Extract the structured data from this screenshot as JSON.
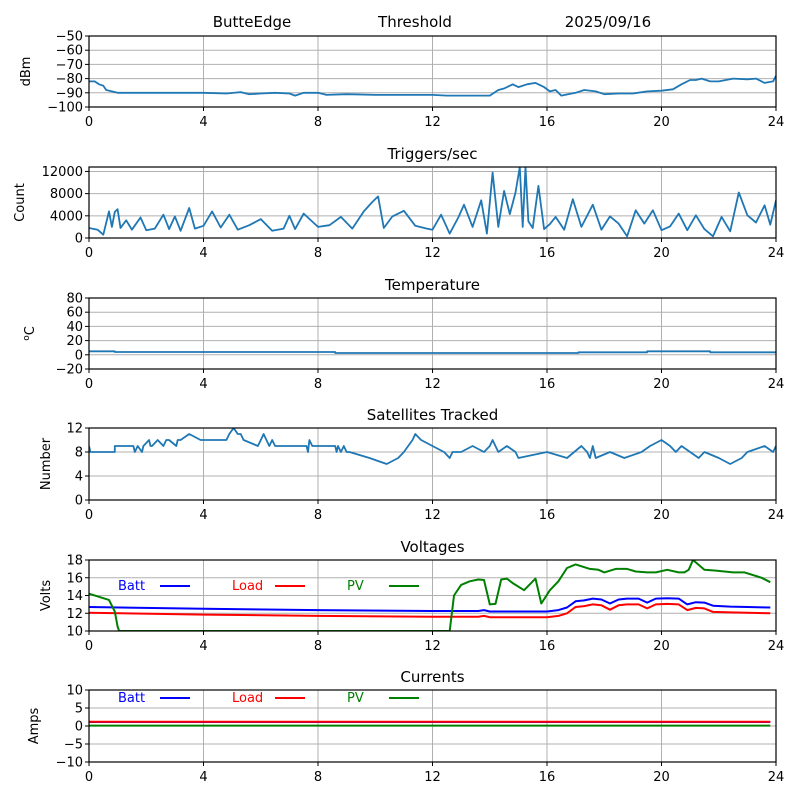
{
  "header": {
    "station": "ButteEdge",
    "first_plot": "Threshold",
    "date": "2025/09/16"
  },
  "chart_data": [
    {
      "id": "threshold",
      "type": "line",
      "title": "Threshold",
      "xlabel": "",
      "ylabel": "dBm",
      "xlim": [
        0,
        24
      ],
      "ylim": [
        -100,
        -50
      ],
      "xticks": [
        0,
        4,
        8,
        12,
        16,
        20,
        24
      ],
      "yticks": [
        -100,
        -90,
        -80,
        -70,
        -60,
        -50
      ],
      "ytick_labels": [
        "−100",
        "−90",
        "−80",
        "−70",
        "−60",
        "−50"
      ],
      "grid": true,
      "series": [
        {
          "name": "threshold",
          "color": "#1f77b4",
          "x": [
            0,
            0.2,
            0.35,
            0.5,
            0.6,
            1,
            2,
            3,
            4,
            4.8,
            5.3,
            5.6,
            6,
            6.5,
            7,
            7.2,
            7.5,
            8,
            8.3,
            9,
            10,
            11,
            12,
            12.5,
            13,
            14,
            14.3,
            14.5,
            14.8,
            15,
            15.3,
            15.6,
            15.9,
            16.1,
            16.3,
            16.5,
            17,
            17.3,
            17.7,
            18,
            18.5,
            19,
            19.5,
            20,
            20.4,
            20.7,
            21,
            21.2,
            21.4,
            21.7,
            22,
            22.5,
            23,
            23.3,
            23.6,
            23.9,
            24
          ],
          "y": [
            -82,
            -82,
            -84,
            -85,
            -88,
            -90,
            -90,
            -90,
            -90,
            -90.5,
            -89.5,
            -91,
            -90.5,
            -90,
            -90.5,
            -92,
            -90,
            -90,
            -91.5,
            -91,
            -91.5,
            -91.5,
            -91.5,
            -92,
            -92,
            -92,
            -88,
            -87,
            -84,
            -86,
            -84,
            -83,
            -86,
            -89,
            -88,
            -92,
            -90,
            -88,
            -89,
            -91,
            -90.5,
            -90.5,
            -89,
            -88.5,
            -87.5,
            -84,
            -81,
            -81,
            -80,
            -82,
            -82,
            -80,
            -80.5,
            -80,
            -83,
            -82,
            -78
          ]
        }
      ]
    },
    {
      "id": "triggers",
      "type": "line",
      "title": "Triggers/sec",
      "xlabel": "",
      "ylabel": "Count",
      "xlim": [
        0,
        24
      ],
      "ylim": [
        0,
        12800
      ],
      "xticks": [
        0,
        4,
        8,
        12,
        16,
        20,
        24
      ],
      "yticks": [
        0,
        4000,
        8000,
        12000
      ],
      "ytick_labels": [
        "0",
        "4000",
        "8000",
        "12000"
      ],
      "grid": true,
      "series": [
        {
          "name": "triggers",
          "color": "#1f77b4",
          "x": [
            0,
            0.3,
            0.5,
            0.7,
            0.8,
            0.9,
            1.0,
            1.1,
            1.3,
            1.5,
            1.8,
            2.0,
            2.3,
            2.6,
            2.8,
            3.0,
            3.2,
            3.5,
            3.7,
            4.0,
            4.3,
            4.6,
            4.9,
            5.2,
            5.6,
            6.0,
            6.4,
            6.8,
            7.0,
            7.2,
            7.5,
            8.0,
            8.4,
            8.8,
            9.2,
            9.6,
            9.9,
            10.1,
            10.3,
            10.6,
            11.0,
            11.4,
            11.8,
            12.0,
            12.3,
            12.6,
            12.9,
            13.1,
            13.4,
            13.7,
            13.9,
            14.1,
            14.3,
            14.5,
            14.7,
            14.9,
            15.05,
            15.15,
            15.25,
            15.35,
            15.5,
            15.7,
            15.9,
            16.1,
            16.3,
            16.6,
            16.9,
            17.2,
            17.6,
            17.9,
            18.2,
            18.5,
            18.8,
            19.1,
            19.4,
            19.7,
            20.0,
            20.3,
            20.6,
            20.9,
            21.2,
            21.5,
            21.8,
            22.1,
            22.4,
            22.7,
            23.0,
            23.3,
            23.6,
            23.8,
            24.0
          ],
          "y": [
            1800,
            1500,
            600,
            4800,
            2000,
            4700,
            5200,
            1800,
            3200,
            1500,
            3700,
            1400,
            1700,
            4200,
            1600,
            3900,
            1300,
            5400,
            1700,
            2200,
            4800,
            1900,
            4200,
            1500,
            2300,
            3400,
            1300,
            1700,
            4000,
            1600,
            4400,
            2000,
            2300,
            3800,
            1700,
            4800,
            6500,
            7500,
            1800,
            3900,
            4900,
            2200,
            1700,
            1500,
            4200,
            800,
            3700,
            6000,
            2000,
            6800,
            800,
            11800,
            2000,
            8500,
            4300,
            8200,
            12800,
            2000,
            12800,
            3000,
            1800,
            9400,
            1600,
            2500,
            3800,
            1500,
            7000,
            2000,
            6000,
            1500,
            3900,
            2600,
            300,
            5000,
            2600,
            5000,
            1400,
            2100,
            4400,
            1400,
            4100,
            1600,
            300,
            3800,
            1200,
            8200,
            4100,
            2800,
            5900,
            2400,
            6800
          ]
        }
      ]
    },
    {
      "id": "temperature",
      "type": "line",
      "title": "Temperature",
      "xlabel": "",
      "ylabel": "°C",
      "ylabel_display": "oC",
      "xlim": [
        0,
        24
      ],
      "ylim": [
        -20,
        80
      ],
      "xticks": [
        0,
        4,
        8,
        12,
        16,
        20,
        24
      ],
      "yticks": [
        -20,
        0,
        20,
        40,
        60,
        80
      ],
      "ytick_labels": [
        "−20",
        "0",
        "20",
        "40",
        "60",
        "80"
      ],
      "grid": true,
      "series": [
        {
          "name": "temperature",
          "color": "#1f77b4",
          "x": [
            0,
            0.9,
            0.9,
            8.6,
            8.6,
            17.1,
            17.1,
            19.5,
            19.5,
            21.7,
            21.7,
            24
          ],
          "y": [
            5,
            5,
            4,
            4,
            2.5,
            2.5,
            3.5,
            3.5,
            5,
            5,
            3.5,
            3.5
          ]
        }
      ]
    },
    {
      "id": "satellites",
      "type": "line",
      "title": "Satellites Tracked",
      "xlabel": "",
      "ylabel": "Number",
      "xlim": [
        0,
        24
      ],
      "ylim": [
        0,
        12
      ],
      "xticks": [
        0,
        4,
        8,
        12,
        16,
        20,
        24
      ],
      "yticks": [
        0,
        4,
        8,
        12
      ],
      "ytick_labels": [
        "0",
        "4",
        "8",
        "12"
      ],
      "grid": true,
      "series": [
        {
          "name": "satellites",
          "color": "#1f77b4",
          "x": [
            0,
            0.05,
            0.1,
            0.9,
            0.9,
            1.55,
            1.6,
            1.7,
            1.85,
            1.9,
            2.1,
            2.15,
            2.2,
            2.4,
            2.6,
            2.7,
            2.8,
            3.05,
            3.1,
            3.2,
            3.5,
            3.9,
            4.8,
            4.9,
            5.05,
            5.2,
            5.3,
            5.4,
            5.9,
            6.0,
            6.1,
            6.3,
            6.4,
            6.5,
            7.6,
            7.65,
            7.7,
            7.8,
            8.6,
            8.65,
            8.7,
            8.8,
            8.9,
            9.0,
            9.1,
            9.8,
            10.4,
            10.8,
            11.0,
            11.3,
            11.4,
            11.6,
            12.0,
            12.4,
            12.6,
            12.7,
            13.0,
            13.4,
            13.8,
            14.0,
            14.1,
            14.3,
            14.6,
            14.9,
            15.0,
            16.0,
            16.7,
            17.2,
            17.4,
            17.5,
            17.6,
            17.7,
            18.2,
            18.7,
            19.3,
            19.6,
            20.0,
            20.3,
            20.5,
            20.7,
            21.0,
            21.3,
            21.5,
            22.0,
            22.4,
            22.8,
            23.0,
            23.6,
            23.9,
            24.0
          ],
          "y": [
            9,
            8,
            8,
            8,
            9,
            9,
            8,
            9,
            8,
            9,
            10,
            9,
            9,
            10,
            9,
            10,
            10,
            9,
            10,
            10,
            11,
            10,
            10,
            11,
            12,
            11,
            11,
            10,
            9,
            10,
            11,
            9,
            10,
            9,
            9,
            8,
            10,
            9,
            9,
            8,
            9,
            8,
            9,
            8,
            8,
            7,
            6,
            7,
            8,
            10,
            11,
            10,
            9,
            8,
            7,
            8,
            8,
            9,
            8,
            9,
            10,
            8,
            9,
            8,
            7,
            8,
            7,
            9,
            8,
            7,
            9,
            7,
            8,
            7,
            8,
            9,
            10,
            9,
            8,
            9,
            8,
            7,
            8,
            7,
            6,
            7,
            8,
            9,
            8,
            9
          ]
        }
      ]
    },
    {
      "id": "voltages",
      "type": "line",
      "title": "Voltages",
      "xlabel": "",
      "ylabel": "Volts",
      "xlim": [
        0,
        24
      ],
      "ylim": [
        10,
        18
      ],
      "xticks": [
        0,
        4,
        8,
        12,
        16,
        20,
        24
      ],
      "yticks": [
        10,
        12,
        14,
        16,
        18
      ],
      "ytick_labels": [
        "10",
        "12",
        "14",
        "16",
        "18"
      ],
      "grid": true,
      "legend": {
        "placement": "top-left",
        "entries": [
          "Batt",
          "Load",
          "PV"
        ]
      },
      "series": [
        {
          "name": "Batt",
          "color": "#0000ff",
          "x": [
            0,
            4,
            8,
            12,
            13.0,
            13.6,
            13.8,
            14.0,
            16.0,
            16.4,
            16.7,
            17.0,
            17.3,
            17.6,
            17.9,
            18.2,
            18.5,
            18.8,
            19.2,
            19.5,
            19.8,
            20.2,
            20.6,
            20.9,
            21.2,
            21.5,
            21.8,
            22.4,
            23.0,
            23.8
          ],
          "y": [
            12.7,
            12.5,
            12.35,
            12.25,
            12.25,
            12.25,
            12.35,
            12.2,
            12.2,
            12.35,
            12.65,
            13.35,
            13.45,
            13.65,
            13.55,
            13.1,
            13.55,
            13.65,
            13.65,
            13.2,
            13.65,
            13.7,
            13.65,
            13.0,
            13.25,
            13.2,
            12.85,
            12.75,
            12.7,
            12.65
          ]
        },
        {
          "name": "Load",
          "color": "#ff0000",
          "x": [
            0,
            4,
            8,
            12,
            13.0,
            13.6,
            13.8,
            14.0,
            16.0,
            16.4,
            16.7,
            17.0,
            17.3,
            17.6,
            17.9,
            18.2,
            18.5,
            18.8,
            19.2,
            19.5,
            19.8,
            20.2,
            20.6,
            20.9,
            21.2,
            21.5,
            21.8,
            22.4,
            23.0,
            23.8
          ],
          "y": [
            12.05,
            11.85,
            11.7,
            11.6,
            11.6,
            11.6,
            11.7,
            11.55,
            11.55,
            11.7,
            12.0,
            12.7,
            12.8,
            13.0,
            12.9,
            12.4,
            12.9,
            13.0,
            13.0,
            12.55,
            13.0,
            13.05,
            13.0,
            12.35,
            12.6,
            12.55,
            12.15,
            12.1,
            12.05,
            12.0
          ]
        },
        {
          "name": "PV",
          "color": "#008000",
          "x": [
            0,
            0.7,
            0.9,
            1.0,
            1.05,
            12.6,
            12.75,
            13.0,
            13.3,
            13.6,
            13.8,
            14.0,
            14.2,
            14.4,
            14.6,
            14.8,
            15.2,
            15.6,
            15.8,
            16.1,
            16.4,
            16.7,
            17.0,
            17.5,
            17.8,
            18.0,
            18.4,
            18.8,
            19.1,
            19.5,
            19.8,
            20.2,
            20.6,
            20.8,
            20.95,
            21.1,
            21.5,
            21.9,
            22.2,
            22.5,
            22.9,
            23.3,
            23.5,
            23.8
          ],
          "y": [
            14.2,
            13.5,
            12.2,
            10.5,
            10.0,
            10.0,
            14.0,
            15.2,
            15.6,
            15.8,
            15.75,
            13.0,
            13.05,
            15.8,
            15.9,
            15.4,
            14.6,
            15.9,
            13.1,
            14.6,
            15.6,
            17.1,
            17.5,
            17.0,
            16.9,
            16.6,
            17.0,
            17.0,
            16.7,
            16.6,
            16.6,
            16.9,
            16.6,
            16.6,
            16.9,
            18.0,
            16.9,
            16.8,
            16.7,
            16.6,
            16.6,
            16.2,
            16.0,
            15.5
          ]
        }
      ]
    },
    {
      "id": "currents",
      "type": "line",
      "title": "Currents",
      "xlabel": "",
      "ylabel": "Amps",
      "xlim": [
        0,
        24
      ],
      "ylim": [
        -10,
        10
      ],
      "xticks": [
        0,
        4,
        8,
        12,
        16,
        20,
        24
      ],
      "yticks": [
        -10,
        -5,
        0,
        5,
        10
      ],
      "ytick_labels": [
        "−10",
        "−5",
        "0",
        "5",
        "10"
      ],
      "grid": true,
      "legend": {
        "placement": "top-left",
        "entries": [
          "Batt",
          "Load",
          "PV"
        ]
      },
      "series": [
        {
          "name": "Batt",
          "color": "#0000ff",
          "x": [
            0,
            23.8
          ],
          "y": [
            1.1,
            1.1
          ]
        },
        {
          "name": "Load",
          "color": "#ff0000",
          "x": [
            0,
            23.8
          ],
          "y": [
            1.2,
            1.2
          ]
        },
        {
          "name": "PV",
          "color": "#008000",
          "x": [
            0,
            23.8
          ],
          "y": [
            0.1,
            0.1
          ]
        }
      ]
    }
  ]
}
